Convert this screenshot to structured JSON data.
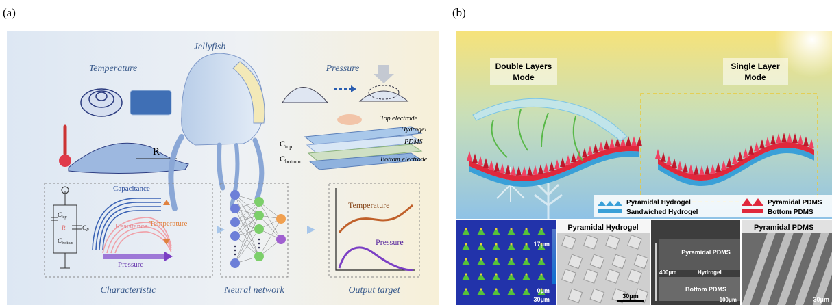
{
  "panel_a": {
    "label": "(a)",
    "jellyfish": "Jellyfish",
    "temperature": "Temperature",
    "pressure": "Pressure",
    "R": "R",
    "layers": [
      "Top electrode",
      "Hydrogel",
      "PDMS",
      "Bottom electrode"
    ],
    "c_top": {
      "main": "C",
      "sub": "top"
    },
    "c_bottom": {
      "main": "C",
      "sub": "bottom"
    },
    "circuit": {
      "c_top": {
        "main": "C",
        "sub": "top"
      },
      "r": "R",
      "c_bottom": {
        "main": "C",
        "sub": "bottom"
      },
      "c_p": {
        "main": "C",
        "sub": "P"
      }
    },
    "characteristic": {
      "capacitance": "Capacitance",
      "resistance": "Resistance",
      "temperature": "Temperature",
      "pressure": "Pressure"
    },
    "output": {
      "temperature": "Temperature",
      "pressure": "Pressure"
    },
    "captions": [
      "Characteristic",
      "Neural network",
      "Output target"
    ]
  },
  "panel_b": {
    "label": "(b)",
    "modes": [
      [
        "Double Layers",
        "Mode"
      ],
      [
        "Single Layer",
        "Mode"
      ]
    ],
    "legend": [
      "Pyramidal Hydrogel",
      "Sandwiched Hydrogel",
      "Pyramidal PDMS",
      "Bottom PDMS"
    ],
    "images": [
      {
        "max": "17μm",
        "min": "0μm",
        "scale": "30μm"
      },
      {
        "title": "Pyramidal Hydrogel",
        "scale": "30μm"
      },
      {
        "top": "Pyramidal PDMS",
        "thickness": "400μm",
        "middle": "Hydrogel",
        "bottom": "Bottom PDMS",
        "scale": "100μm"
      },
      {
        "title": "Pyramidal PDMS",
        "scale": "30μm"
      }
    ]
  }
}
